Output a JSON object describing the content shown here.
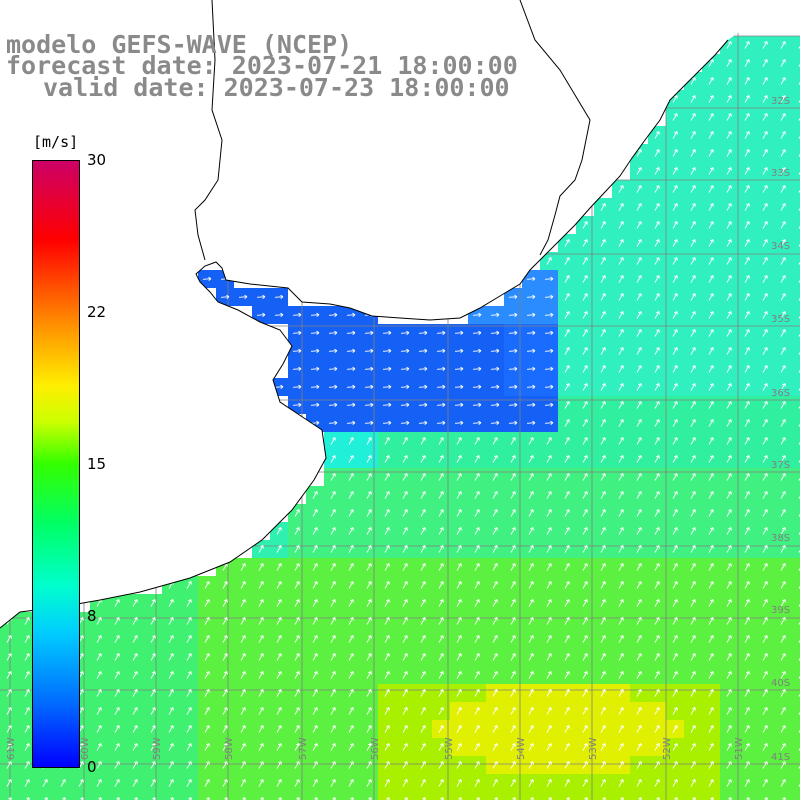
{
  "title": {
    "line1": "modelo GEFS-WAVE (NCEP)",
    "line2": "forecast date: 2023-07-21 18:00:00",
    "line3": "valid date: 2023-07-23 18:00:00"
  },
  "colorbar": {
    "units": "[m/s]",
    "ticks": [
      "30",
      "22",
      "15",
      "8",
      "0"
    ],
    "range": [
      0,
      30
    ]
  },
  "axes": {
    "lat_labels": [
      "32S",
      "33S",
      "34S",
      "35S",
      "36S",
      "37S",
      "38S",
      "39S",
      "40S",
      "41S"
    ],
    "lon_labels": [
      "61W",
      "60W",
      "59W",
      "58W",
      "57W",
      "56W",
      "55W",
      "54W",
      "53W",
      "52W",
      "51W"
    ]
  },
  "colors": {
    "title_gray": "#8a8a8a",
    "land": "#ffffff",
    "coast": "#000000",
    "grid": "#808080",
    "arrows": "#ffffff"
  }
}
